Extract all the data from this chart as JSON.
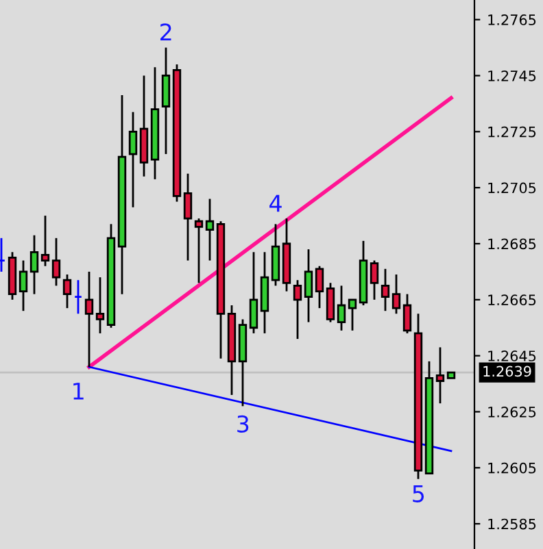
{
  "chart_data": {
    "type": "candlestick",
    "categories": [
      null,
      null,
      null,
      null,
      null,
      null,
      null,
      null,
      null,
      null,
      null,
      null,
      null,
      null,
      null,
      null,
      null,
      null,
      null,
      null,
      null,
      null,
      null,
      null,
      null,
      null,
      null,
      null,
      null,
      null,
      null,
      null,
      null,
      null,
      null,
      null,
      null,
      null,
      null,
      null,
      null,
      null
    ],
    "ohlc": [
      [
        1.2679,
        1.2687,
        1.2675,
        1.2679
      ],
      [
        1.268,
        1.2682,
        1.2665,
        1.2667
      ],
      [
        1.2668,
        1.2679,
        1.2661,
        1.2675
      ],
      [
        1.2675,
        1.2688,
        1.2667,
        1.2682
      ],
      [
        1.2681,
        1.2695,
        1.2677,
        1.2679
      ],
      [
        1.2679,
        1.2687,
        1.267,
        1.2673
      ],
      [
        1.2672,
        1.2674,
        1.2662,
        1.2667
      ],
      [
        1.2666,
        1.2672,
        1.266,
        1.2666
      ],
      [
        1.2665,
        1.2675,
        1.2641,
        1.266
      ],
      [
        1.266,
        1.2673,
        1.2653,
        1.2658
      ],
      [
        1.2656,
        1.2692,
        1.2655,
        1.2687
      ],
      [
        1.2684,
        1.2738,
        1.2667,
        1.2716
      ],
      [
        1.2717,
        1.2732,
        1.2698,
        1.2725
      ],
      [
        1.2726,
        1.2745,
        1.2709,
        1.2714
      ],
      [
        1.2715,
        1.2748,
        1.2708,
        1.2733
      ],
      [
        1.2734,
        1.2755,
        1.2717,
        1.2745
      ],
      [
        1.2747,
        1.2749,
        1.27,
        1.2702
      ],
      [
        1.2703,
        1.271,
        1.2679,
        1.2694
      ],
      [
        1.2693,
        1.2694,
        1.2671,
        1.2691
      ],
      [
        1.269,
        1.2701,
        1.2679,
        1.2693
      ],
      [
        1.2692,
        1.2693,
        1.2644,
        1.266
      ],
      [
        1.266,
        1.2663,
        1.2631,
        1.2643
      ],
      [
        1.2643,
        1.2658,
        1.2627,
        1.2656
      ],
      [
        1.2655,
        1.2682,
        1.2653,
        1.2665
      ],
      [
        1.2661,
        1.2682,
        1.2653,
        1.2673
      ],
      [
        1.2672,
        1.2692,
        1.267,
        1.2684
      ],
      [
        1.2685,
        1.2694,
        1.2668,
        1.2671
      ],
      [
        1.267,
        1.2672,
        1.2651,
        1.2665
      ],
      [
        1.2666,
        1.2683,
        1.2657,
        1.2675
      ],
      [
        1.2676,
        1.2677,
        1.2662,
        1.2668
      ],
      [
        1.2669,
        1.2671,
        1.2657,
        1.2658
      ],
      [
        1.2657,
        1.267,
        1.2654,
        1.2663
      ],
      [
        1.2662,
        1.2665,
        1.2654,
        1.2665
      ],
      [
        1.2664,
        1.2686,
        1.2663,
        1.2679
      ],
      [
        1.2678,
        1.2679,
        1.2665,
        1.2671
      ],
      [
        1.267,
        1.2676,
        1.2661,
        1.2666
      ],
      [
        1.2667,
        1.2674,
        1.266,
        1.2662
      ],
      [
        1.2663,
        1.2667,
        1.2653,
        1.2654
      ],
      [
        1.2653,
        1.266,
        1.2601,
        1.2604
      ],
      [
        1.2603,
        1.2643,
        1.2603,
        1.2637
      ],
      [
        1.2638,
        1.2648,
        1.2628,
        1.2636
      ],
      [
        1.2637,
        1.2639,
        1.2637,
        1.2639
      ]
    ],
    "colors": [
      "#0000ff",
      "#dc143c",
      "#32cd32",
      "#32cd32",
      "#dc143c",
      "#dc143c",
      "#dc143c",
      "#0000ff",
      "#dc143c",
      "#dc143c",
      "#32cd32",
      "#32cd32",
      "#32cd32",
      "#dc143c",
      "#32cd32",
      "#32cd32",
      "#dc143c",
      "#dc143c",
      "#dc143c",
      "#32cd32",
      "#dc143c",
      "#dc143c",
      "#32cd32",
      "#32cd32",
      "#32cd32",
      "#32cd32",
      "#dc143c",
      "#dc143c",
      "#32cd32",
      "#dc143c",
      "#dc143c",
      "#32cd32",
      "#32cd32",
      "#32cd32",
      "#dc143c",
      "#dc143c",
      "#dc143c",
      "#dc143c",
      "#dc143c",
      "#32cd32",
      "#dc143c",
      "#32cd32"
    ],
    "series": [
      {
        "type": "line",
        "color": "#ff1493",
        "values": [
          null,
          null,
          null,
          null,
          null,
          null,
          null,
          null,
          1.2641,
          null,
          null,
          null,
          null,
          null,
          null,
          null,
          null,
          null,
          null,
          null,
          null,
          null,
          null,
          null,
          null,
          null,
          null,
          null,
          null,
          null,
          null,
          null,
          null,
          null,
          null,
          null,
          null,
          null,
          null,
          null,
          null,
          1.2737
        ]
      },
      {
        "type": "line",
        "color": "#0000ff",
        "values": [
          null,
          null,
          null,
          null,
          null,
          null,
          null,
          null,
          1.2641,
          null,
          null,
          null,
          null,
          null,
          null,
          null,
          null,
          null,
          null,
          null,
          null,
          null,
          null,
          null,
          null,
          null,
          null,
          null,
          null,
          null,
          null,
          null,
          null,
          null,
          null,
          null,
          null,
          null,
          null,
          null,
          null,
          1.2611
        ]
      }
    ],
    "ref_lines": [
      {
        "axis": "y",
        "value": 1.2639,
        "label": "1.2639",
        "color": "#c0c0c0"
      }
    ],
    "annotations": [
      "1",
      "2",
      "3",
      "4",
      "5"
    ],
    "ylim": [
      1.2576,
      1.2772
    ],
    "yticks": [
      1.2585,
      1.2605,
      1.2625,
      1.2645,
      1.2665,
      1.2685,
      1.2705,
      1.2725,
      1.2745,
      1.2765
    ],
    "tick_labels": "y",
    "grid": false
  }
}
